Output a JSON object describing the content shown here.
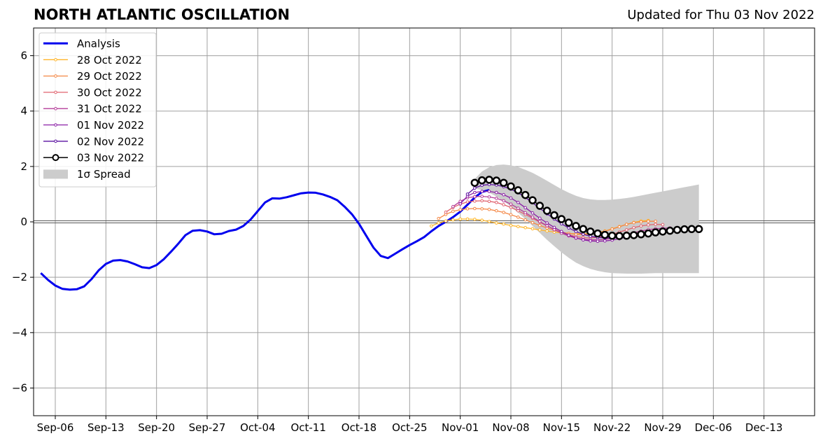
{
  "header": {
    "title": "NORTH ATLANTIC OSCILLATION",
    "updated": "Updated for Thu 03 Nov 2022"
  },
  "chart_data": {
    "type": "line",
    "title": "NORTH ATLANTIC OSCILLATION",
    "xlabel": "",
    "ylabel": "",
    "xlim": [
      "2022-09-03",
      "2022-12-20"
    ],
    "ylim": [
      -7,
      7
    ],
    "grid": true,
    "legend_position": "top-left",
    "x_ticks": [
      {
        "date": "2022-09-06",
        "label": "Sep-06"
      },
      {
        "date": "2022-09-13",
        "label": "Sep-13"
      },
      {
        "date": "2022-09-20",
        "label": "Sep-20"
      },
      {
        "date": "2022-09-27",
        "label": "Sep-27"
      },
      {
        "date": "2022-10-04",
        "label": "Oct-04"
      },
      {
        "date": "2022-10-11",
        "label": "Oct-11"
      },
      {
        "date": "2022-10-18",
        "label": "Oct-18"
      },
      {
        "date": "2022-10-25",
        "label": "Oct-25"
      },
      {
        "date": "2022-11-01",
        "label": "Nov-01"
      },
      {
        "date": "2022-11-08",
        "label": "Nov-08"
      },
      {
        "date": "2022-11-15",
        "label": "Nov-15"
      },
      {
        "date": "2022-11-22",
        "label": "Nov-22"
      },
      {
        "date": "2022-11-29",
        "label": "Nov-29"
      },
      {
        "date": "2022-12-06",
        "label": "Dec-06"
      },
      {
        "date": "2022-12-13",
        "label": "Dec-13"
      }
    ],
    "y_ticks": [
      {
        "value": -6,
        "label": "−6"
      },
      {
        "value": -4,
        "label": "−4"
      },
      {
        "value": -2,
        "label": "−2"
      },
      {
        "value": 0,
        "label": "0"
      },
      {
        "value": 2,
        "label": "2"
      },
      {
        "value": 4,
        "label": "4"
      },
      {
        "value": 6,
        "label": "6"
      }
    ],
    "analysis": {
      "name": "Analysis",
      "color": "#0000ee",
      "start": "2022-09-04",
      "values": [
        -1.85,
        -2.1,
        -2.3,
        -2.42,
        -2.45,
        -2.43,
        -2.33,
        -2.07,
        -1.75,
        -1.52,
        -1.4,
        -1.38,
        -1.43,
        -1.53,
        -1.64,
        -1.67,
        -1.56,
        -1.35,
        -1.08,
        -0.79,
        -0.48,
        -0.32,
        -0.3,
        -0.35,
        -0.45,
        -0.43,
        -0.33,
        -0.28,
        -0.15,
        0.08,
        0.39,
        0.7,
        0.85,
        0.84,
        0.89,
        0.96,
        1.03,
        1.06,
        1.05,
        0.99,
        0.9,
        0.78,
        0.55,
        0.28,
        -0.07,
        -0.5,
        -0.93,
        -1.23,
        -1.31,
        -1.15,
        -0.99,
        -0.84,
        -0.7,
        -0.55,
        -0.34,
        -0.15,
        0.0,
        0.17,
        0.37,
        0.62,
        0.88,
        1.08,
        1.15
      ]
    },
    "forecasts": [
      {
        "name": "28 Oct 2022",
        "color": "#ffb52a",
        "start": "2022-10-28",
        "values": [
          -0.15,
          -0.04,
          0.03,
          0.07,
          0.1,
          0.1,
          0.09,
          0.06,
          0.01,
          -0.04,
          -0.08,
          -0.13,
          -0.17,
          -0.21,
          -0.25,
          -0.29,
          -0.33,
          -0.37,
          -0.4,
          -0.42,
          -0.43,
          -0.43,
          -0.42,
          -0.38,
          -0.33,
          -0.25,
          -0.17,
          -0.09,
          -0.02,
          0.03,
          0.05
        ]
      },
      {
        "name": "29 Oct 2022",
        "color": "#f48745",
        "start": "2022-10-29",
        "values": [
          0.12,
          0.27,
          0.38,
          0.44,
          0.47,
          0.48,
          0.47,
          0.45,
          0.4,
          0.34,
          0.26,
          0.17,
          0.07,
          -0.03,
          -0.13,
          -0.22,
          -0.3,
          -0.37,
          -0.42,
          -0.45,
          -0.46,
          -0.44,
          -0.4,
          -0.34,
          -0.26,
          -0.18,
          -0.09,
          -0.03,
          0.0,
          0.02,
          0.02
        ]
      },
      {
        "name": "30 Oct 2022",
        "color": "#e0626e",
        "start": "2022-10-30",
        "values": [
          0.35,
          0.52,
          0.64,
          0.72,
          0.75,
          0.76,
          0.74,
          0.7,
          0.62,
          0.52,
          0.4,
          0.27,
          0.13,
          -0.01,
          -0.15,
          -0.27,
          -0.38,
          -0.47,
          -0.53,
          -0.57,
          -0.58,
          -0.56,
          -0.51,
          -0.45,
          -0.37,
          -0.29,
          -0.21,
          -0.15,
          -0.11,
          -0.09,
          -0.1
        ]
      },
      {
        "name": "31 Oct 2022",
        "color": "#b53d99",
        "start": "2022-10-31",
        "values": [
          0.55,
          0.74,
          0.87,
          0.91,
          0.92,
          0.9,
          0.85,
          0.76,
          0.64,
          0.49,
          0.33,
          0.17,
          0.01,
          -0.14,
          -0.28,
          -0.41,
          -0.51,
          -0.59,
          -0.63,
          -0.65,
          -0.65,
          -0.63,
          -0.59,
          -0.53,
          -0.46,
          -0.39,
          -0.33,
          -0.28,
          -0.25,
          -0.23,
          -0.22
        ]
      },
      {
        "name": "01 Nov 2022",
        "color": "#8a1fa6",
        "start": "2022-11-01",
        "values": [
          0.65,
          0.93,
          1.06,
          1.1,
          1.1,
          1.06,
          0.98,
          0.86,
          0.7,
          0.51,
          0.32,
          0.13,
          -0.04,
          -0.2,
          -0.35,
          -0.48,
          -0.58,
          -0.65,
          -0.69,
          -0.7,
          -0.69,
          -0.66,
          -0.61,
          -0.55,
          -0.49,
          -0.43,
          -0.38,
          -0.34,
          -0.32,
          -0.31,
          -0.3
        ]
      },
      {
        "name": "02 Nov 2022",
        "color": "#5a10a0",
        "start": "2022-11-02",
        "values": [
          1.0,
          1.22,
          1.32,
          1.35,
          1.33,
          1.27,
          1.18,
          1.05,
          0.88,
          0.69,
          0.49,
          0.29,
          0.1,
          -0.07,
          -0.22,
          -0.35,
          -0.45,
          -0.52,
          -0.56,
          -0.58,
          -0.58,
          -0.56,
          -0.53,
          -0.49,
          -0.45,
          -0.41,
          -0.38,
          -0.35,
          -0.33,
          -0.32,
          -0.31
        ]
      },
      {
        "name": "03 Nov 2022",
        "color": "#000000",
        "start": "2022-11-03",
        "values": [
          1.41,
          1.5,
          1.52,
          1.49,
          1.41,
          1.28,
          1.14,
          0.97,
          0.78,
          0.58,
          0.4,
          0.24,
          0.1,
          -0.03,
          -0.15,
          -0.26,
          -0.35,
          -0.42,
          -0.47,
          -0.5,
          -0.51,
          -0.5,
          -0.48,
          -0.45,
          -0.42,
          -0.38,
          -0.35,
          -0.32,
          -0.29,
          -0.27,
          -0.26,
          -0.26
        ]
      }
    ],
    "spread": {
      "name": "1σ Spread",
      "color": "#cccccc",
      "start": "2022-11-03",
      "upper": [
        1.55,
        1.82,
        1.97,
        2.05,
        2.07,
        2.04,
        1.98,
        1.88,
        1.77,
        1.63,
        1.48,
        1.33,
        1.18,
        1.05,
        0.94,
        0.86,
        0.81,
        0.79,
        0.79,
        0.8,
        0.83,
        0.86,
        0.9,
        0.95,
        1.0,
        1.05,
        1.1,
        1.15,
        1.2,
        1.25,
        1.3,
        1.35
      ],
      "lower": [
        1.2,
        1.15,
        1.05,
        0.92,
        0.75,
        0.55,
        0.33,
        0.1,
        -0.15,
        -0.4,
        -0.65,
        -0.88,
        -1.1,
        -1.3,
        -1.47,
        -1.6,
        -1.7,
        -1.77,
        -1.82,
        -1.85,
        -1.86,
        -1.87,
        -1.87,
        -1.87,
        -1.86,
        -1.85,
        -1.85,
        -1.85,
        -1.85,
        -1.85,
        -1.85,
        -1.85
      ]
    }
  }
}
